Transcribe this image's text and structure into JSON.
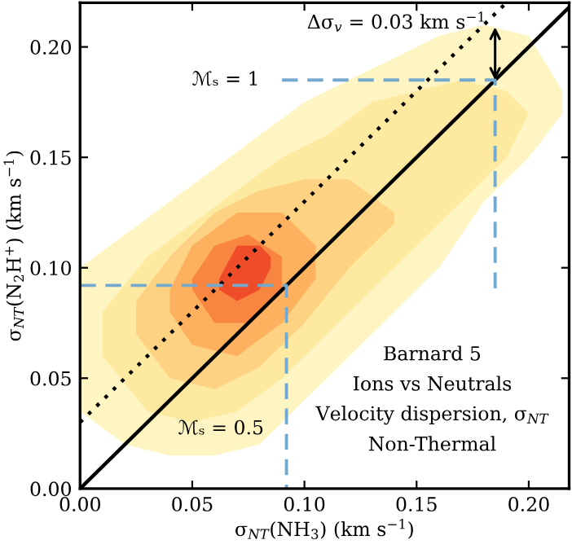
{
  "chart_data": {
    "type": "area",
    "xlabel": "σ$_{NT}$(NH$_{3}$) (km s$^{−1}$)",
    "ylabel": "σ$_{NT}$(N$_{2}$H$^{+}$) (km s$^{−1}$)",
    "xlim": [
      0,
      0.218
    ],
    "ylim": [
      0,
      0.22
    ],
    "xticks": [
      {
        "value": 0,
        "label": "0.00"
      },
      0.05,
      {
        "value": 0.1,
        "label": "0.10"
      },
      0.15,
      {
        "value": 0.2,
        "label": "0.20"
      }
    ],
    "yticks": [
      {
        "value": 0,
        "label": "0.00"
      },
      0.05,
      {
        "value": 0.1,
        "label": "0.10"
      },
      0.15,
      {
        "value": 0.2,
        "label": "0.20"
      }
    ],
    "grid": false,
    "legend": false,
    "series": [
      {
        "color": "#fff5c2",
        "x": [
          0.0,
          0.02,
          0.04,
          0.06,
          0.08,
          0.1,
          0.12,
          0.14,
          0.16,
          0.18,
          0.2,
          0.215
        ],
        "values": [
          null,
          null,
          null,
          null,
          null,
          null,
          null,
          null,
          null,
          null,
          null,
          null
        ],
        "lower": [
          0.035,
          0.02,
          0.015,
          0.015,
          0.02,
          0.04,
          0.06,
          0.08,
          0.1,
          0.13,
          0.15,
          0.17
        ],
        "upper": [
          0.1,
          0.115,
          0.13,
          0.145,
          0.16,
          0.175,
          0.185,
          0.195,
          0.205,
          0.21,
          0.205,
          0.18
        ]
      },
      {
        "color": "#fee9a0",
        "x": [
          0.01,
          0.03,
          0.05,
          0.07,
          0.09,
          0.11,
          0.13,
          0.15,
          0.17,
          0.19,
          0.2
        ],
        "values": [
          null,
          null,
          null,
          null,
          null,
          null,
          null,
          null,
          null,
          null,
          null
        ],
        "lower": [
          0.06,
          0.035,
          0.03,
          0.035,
          0.05,
          0.07,
          0.09,
          0.11,
          0.13,
          0.15,
          0.17
        ],
        "upper": [
          0.08,
          0.105,
          0.12,
          0.135,
          0.15,
          0.16,
          0.175,
          0.18,
          0.185,
          0.18,
          0.17
        ]
      },
      {
        "color": "#fed283",
        "x": [
          0.025,
          0.04,
          0.06,
          0.08,
          0.1,
          0.12,
          0.14
        ],
        "values": [
          null,
          null,
          null,
          null,
          null,
          null,
          null
        ],
        "lower": [
          0.07,
          0.05,
          0.045,
          0.055,
          0.075,
          0.1,
          0.12
        ],
        "upper": [
          0.085,
          0.105,
          0.125,
          0.135,
          0.14,
          0.14,
          0.125
        ]
      },
      {
        "color": "#fdb15e",
        "x": [
          0.04,
          0.05,
          0.07,
          0.09,
          0.105
        ],
        "values": [
          null,
          null,
          null,
          null,
          null
        ],
        "lower": [
          0.08,
          0.065,
          0.06,
          0.075,
          0.095
        ],
        "upper": [
          0.09,
          0.11,
          0.125,
          0.125,
          0.11
        ]
      },
      {
        "color": "#f98640",
        "x": [
          0.05,
          0.06,
          0.075,
          0.09
        ],
        "values": [
          null,
          null,
          null,
          null
        ],
        "lower": [
          0.09,
          0.075,
          0.075,
          0.09
        ],
        "upper": [
          0.095,
          0.11,
          0.115,
          0.105
        ]
      },
      {
        "color": "#ef4d2a",
        "x": [
          0.062,
          0.07,
          0.08,
          0.085
        ],
        "values": [
          null,
          null,
          null,
          null
        ],
        "lower": [
          0.09,
          0.085,
          0.09,
          0.1
        ],
        "upper": [
          0.095,
          0.11,
          0.11,
          0.105
        ]
      },
      {
        "type": "line",
        "color": "#000000",
        "line_style": "solid",
        "x": [
          0,
          0.218
        ],
        "values": [
          0,
          0.218
        ]
      },
      {
        "type": "line",
        "color": "#000000",
        "line_style": "dotted",
        "x": [
          0,
          0.19
        ],
        "values": [
          0.03,
          0.22
        ]
      },
      {
        "type": "line",
        "color": "#74a9cf",
        "line_style": "dashed",
        "x": [
          0,
          0.092,
          0.092
        ],
        "values": [
          0.092,
          0.092,
          0
        ]
      },
      {
        "type": "line",
        "color": "#74a9cf",
        "line_style": "dashed",
        "x": [
          0.09,
          0.185,
          0.185
        ],
        "values": [
          0.185,
          0.185,
          0.09
        ]
      }
    ],
    "annotations": [
      {
        "text": "Δσ$_{v}$ = 0.03 km s$^{−1}$",
        "x": 0.185,
        "y": 0.209
      },
      {
        "text": "ℳₛ = 1",
        "x": 0.09,
        "y": 0.185
      },
      {
        "text": "ℳₛ = 0.5",
        "x": 0.092,
        "y": 0.027
      },
      "Barnard 5",
      "Ions vs Neutrals",
      "Velocity dispersion, σ$_{NT}$",
      "Non-Thermal"
    ]
  }
}
